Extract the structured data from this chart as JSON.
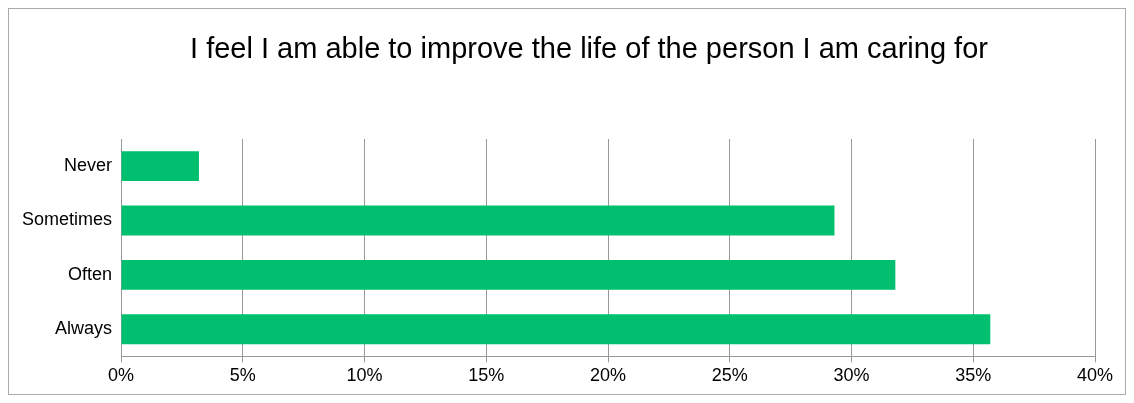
{
  "chart_data": {
    "type": "bar",
    "orientation": "horizontal",
    "title": "I feel I am able to improve the life of the person I am caring for",
    "categories": [
      "Never",
      "Sometimes",
      "Often",
      "Always"
    ],
    "values": [
      3.2,
      29.3,
      31.8,
      35.7
    ],
    "color": "#00bf6f",
    "xlim": [
      0,
      40
    ],
    "xticks": [
      {
        "value": 0,
        "label": "0%"
      },
      {
        "value": 5,
        "label": "5%"
      },
      {
        "value": 10,
        "label": "10%"
      },
      {
        "value": 15,
        "label": "15%"
      },
      {
        "value": 20,
        "label": "20%"
      },
      {
        "value": 25,
        "label": "25%"
      },
      {
        "value": 30,
        "label": "30%"
      },
      {
        "value": 35,
        "label": "35%"
      },
      {
        "value": 40,
        "label": "40%"
      }
    ],
    "grid": "x",
    "legend": false
  }
}
